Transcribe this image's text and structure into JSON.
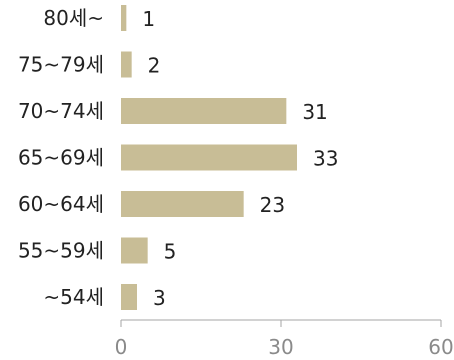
{
  "chart_data": {
    "type": "bar",
    "orientation": "horizontal",
    "categories": [
      "80세~",
      "75~79세",
      "70~74세",
      "65~69세",
      "60~64세",
      "55~59세",
      "~54세"
    ],
    "values": [
      1,
      2,
      31,
      33,
      23,
      5,
      3
    ],
    "data_labels": [
      "1",
      "2",
      "31",
      "33",
      "23",
      "5",
      "3"
    ],
    "xlim": [
      0,
      60
    ],
    "xticks": [
      0,
      30,
      60
    ],
    "xtick_labels": [
      "0",
      "30",
      "60"
    ],
    "title": "",
    "xlabel": "",
    "ylabel": "",
    "grid": false,
    "legend": "none",
    "colors": {
      "bar": "#c8bd96",
      "axis": "#a6a6a6",
      "text": "#222222",
      "tick_text": "#8a8a8a"
    }
  }
}
